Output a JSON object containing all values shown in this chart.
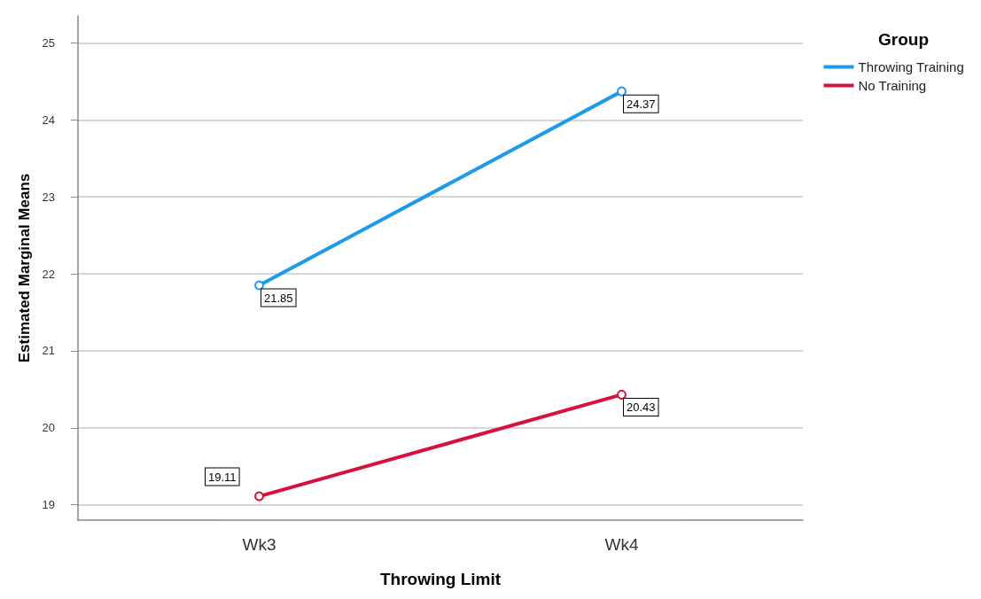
{
  "chart_data": {
    "type": "line",
    "xlabel": "Throwing Limit",
    "ylabel": "Estimated Marginal Means",
    "legend_title": "Group",
    "categories": [
      "Wk3",
      "Wk4"
    ],
    "series": [
      {
        "name": "Throwing Training",
        "color": "#1f9ae8",
        "values": [
          21.85,
          24.37
        ]
      },
      {
        "name": "No Training",
        "color": "#d7103c",
        "values": [
          19.11,
          20.43
        ]
      }
    ],
    "ylim": [
      18.8,
      25.35
    ],
    "yticks": [
      19,
      20,
      21,
      22,
      23,
      24,
      25
    ],
    "grid": "y",
    "legend": "top right",
    "marker": "circle",
    "line_style": "solid",
    "data_labels": true
  }
}
